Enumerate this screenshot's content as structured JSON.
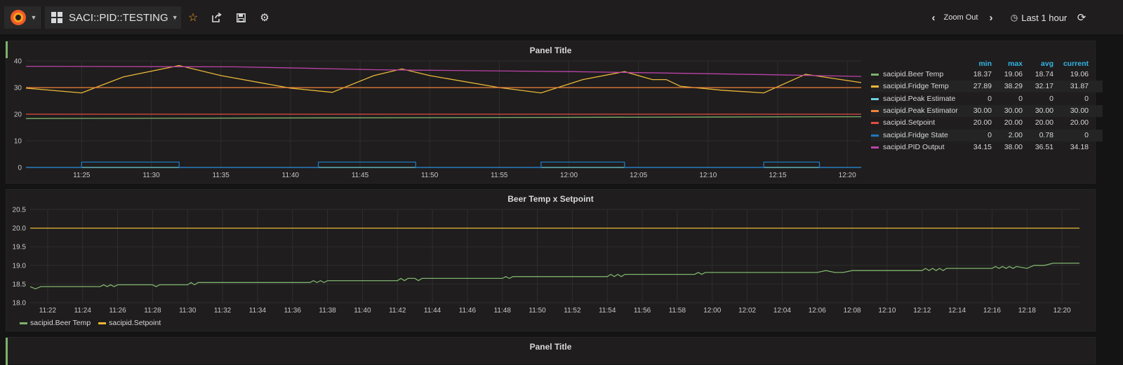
{
  "navbar": {
    "dashboard_title": "SACI::PID::TESTING",
    "zoom_out_label": "Zoom Out",
    "time_range_label": "Last 1 hour",
    "icons": [
      "grafana-logo-icon",
      "grid-icon",
      "star-icon",
      "share-icon",
      "save-icon",
      "gear-icon",
      "chevron-left-icon",
      "chevron-right-icon",
      "clock-icon",
      "refresh-icon"
    ]
  },
  "panels": {
    "top": {
      "title": "Panel Title",
      "legend_headers": {
        "min": "min",
        "max": "max",
        "avg": "avg",
        "current": "current"
      },
      "legend": [
        {
          "name": "sacipid.Beer Temp",
          "color": "#7eb26d",
          "min": "18.37",
          "max": "19.06",
          "avg": "18.74",
          "current": "19.06"
        },
        {
          "name": "sacipid.Fridge Temp",
          "color": "#eab839",
          "min": "27.89",
          "max": "38.29",
          "avg": "32.17",
          "current": "31.87"
        },
        {
          "name": "sacipid.Peak Estimate",
          "color": "#6ed0e0",
          "min": "0",
          "max": "0",
          "avg": "0",
          "current": "0"
        },
        {
          "name": "sacipid.Peak Estimator",
          "color": "#ef843c",
          "min": "30.00",
          "max": "30.00",
          "avg": "30.00",
          "current": "30.00"
        },
        {
          "name": "sacipid.Setpoint",
          "color": "#e24d42",
          "min": "20.00",
          "max": "20.00",
          "avg": "20.00",
          "current": "20.00"
        },
        {
          "name": "sacipid.Fridge State",
          "color": "#1f78c1",
          "min": "0",
          "max": "2.00",
          "avg": "0.78",
          "current": "0"
        },
        {
          "name": "sacipid.PID Output",
          "color": "#ba43a9",
          "min": "34.15",
          "max": "38.00",
          "avg": "36.51",
          "current": "34.18"
        }
      ]
    },
    "middle": {
      "title": "Beer Temp x Setpoint",
      "legend": [
        {
          "name": "sacipid.Beer Temp",
          "color": "#7eb26d"
        },
        {
          "name": "sacipid.Setpoint",
          "color": "#eab839"
        }
      ]
    },
    "bottom": {
      "title": "Panel Title"
    }
  },
  "chart_data": [
    {
      "type": "line",
      "title": "Panel Title",
      "x_ticks": [
        "11:25",
        "11:30",
        "11:35",
        "11:40",
        "11:45",
        "11:50",
        "11:55",
        "12:00",
        "12:05",
        "12:10",
        "12:15",
        "12:20"
      ],
      "x_range": [
        "11:21",
        "12:21"
      ],
      "y_ticks": [
        0,
        10,
        20,
        30,
        40
      ],
      "ylim": [
        0,
        40
      ],
      "grid": true,
      "legend_position": "right",
      "series": [
        {
          "name": "sacipid.Beer Temp",
          "color": "#7eb26d",
          "points": [
            [
              "11:21",
              18.37
            ],
            [
              "12:21",
              19.06
            ]
          ]
        },
        {
          "name": "sacipid.Fridge Temp",
          "color": "#eab839",
          "points": [
            [
              "11:21",
              29.8
            ],
            [
              "11:25",
              28.0
            ],
            [
              "11:28",
              34.0
            ],
            [
              "11:32",
              38.3
            ],
            [
              "11:35",
              34.5
            ],
            [
              "11:40",
              29.8
            ],
            [
              "11:43",
              28.2
            ],
            [
              "11:46",
              34.5
            ],
            [
              "11:48",
              37.0
            ],
            [
              "11:50",
              34.5
            ],
            [
              "11:55",
              30.0
            ],
            [
              "11:58",
              28.0
            ],
            [
              "12:01",
              33.0
            ],
            [
              "12:04",
              36.0
            ],
            [
              "12:06",
              33.0
            ],
            [
              "12:07",
              33.0
            ],
            [
              "12:08",
              30.5
            ],
            [
              "12:11",
              29.0
            ],
            [
              "12:14",
              28.0
            ],
            [
              "12:17",
              35.0
            ],
            [
              "12:21",
              31.87
            ]
          ]
        },
        {
          "name": "sacipid.Peak Estimate",
          "color": "#6ed0e0",
          "points": [
            [
              "11:21",
              0
            ],
            [
              "12:21",
              0
            ]
          ]
        },
        {
          "name": "sacipid.Peak Estimator",
          "color": "#ef843c",
          "points": [
            [
              "11:21",
              30.0
            ],
            [
              "12:21",
              30.0
            ]
          ]
        },
        {
          "name": "sacipid.Setpoint",
          "color": "#e24d42",
          "points": [
            [
              "11:21",
              20.0
            ],
            [
              "12:21",
              20.0
            ]
          ]
        },
        {
          "name": "sacipid.Fridge State",
          "color": "#1f78c1",
          "points": [
            [
              "11:21",
              0
            ],
            [
              "11:25",
              0
            ],
            [
              "11:25",
              2
            ],
            [
              "11:32",
              2
            ],
            [
              "11:32",
              0
            ],
            [
              "11:42",
              0
            ],
            [
              "11:42",
              2
            ],
            [
              "11:49",
              2
            ],
            [
              "11:49",
              0
            ],
            [
              "11:58",
              0
            ],
            [
              "11:58",
              2
            ],
            [
              "12:04",
              2
            ],
            [
              "12:04",
              0
            ],
            [
              "12:14",
              0
            ],
            [
              "12:14",
              2
            ],
            [
              "12:18",
              2
            ],
            [
              "12:18",
              0
            ],
            [
              "12:21",
              0
            ]
          ]
        },
        {
          "name": "sacipid.PID Output",
          "color": "#ba43a9",
          "points": [
            [
              "11:21",
              38.0
            ],
            [
              "11:36",
              37.8
            ],
            [
              "11:41",
              37.3
            ],
            [
              "11:46",
              36.7
            ],
            [
              "11:50",
              36.5
            ],
            [
              "12:00",
              36.0
            ],
            [
              "12:05",
              35.6
            ],
            [
              "12:10",
              35.2
            ],
            [
              "12:15",
              34.8
            ],
            [
              "12:21",
              34.18
            ]
          ]
        }
      ]
    },
    {
      "type": "line",
      "title": "Beer Temp x Setpoint",
      "x_ticks": [
        "11:22",
        "11:24",
        "11:26",
        "11:28",
        "11:30",
        "11:32",
        "11:34",
        "11:36",
        "11:38",
        "11:40",
        "11:42",
        "11:44",
        "11:46",
        "11:48",
        "11:50",
        "11:52",
        "11:54",
        "11:56",
        "11:58",
        "12:00",
        "12:02",
        "12:04",
        "12:06",
        "12:08",
        "12:10",
        "12:12",
        "12:14",
        "12:16",
        "12:18",
        "12:20"
      ],
      "x_range": [
        "11:21",
        "12:21"
      ],
      "y_ticks": [
        "18.0",
        "18.5",
        "19.0",
        "19.5",
        "20.0",
        "20.5"
      ],
      "ylim": [
        18.0,
        20.5
      ],
      "grid": true,
      "legend_position": "bottom",
      "series": [
        {
          "name": "sacipid.Beer Temp",
          "color": "#7eb26d",
          "points": [
            [
              "11:21",
              18.43
            ],
            [
              "11:21.3",
              18.37
            ],
            [
              "11:21.6",
              18.43
            ],
            [
              "11:25",
              18.43
            ],
            [
              "11:25.2",
              18.48
            ],
            [
              "11:25.4",
              18.43
            ],
            [
              "11:25.6",
              18.48
            ],
            [
              "11:25.8",
              18.43
            ],
            [
              "11:26",
              18.48
            ],
            [
              "11:28",
              18.48
            ],
            [
              "11:28.2",
              18.43
            ],
            [
              "11:28.4",
              18.48
            ],
            [
              "11:30",
              18.48
            ],
            [
              "11:30.2",
              18.54
            ],
            [
              "11:30.4",
              18.48
            ],
            [
              "11:30.6",
              18.54
            ],
            [
              "11:37",
              18.54
            ],
            [
              "11:37.2",
              18.59
            ],
            [
              "11:37.4",
              18.54
            ],
            [
              "11:37.6",
              18.59
            ],
            [
              "11:37.8",
              18.54
            ],
            [
              "11:38",
              18.59
            ],
            [
              "11:42",
              18.59
            ],
            [
              "11:42.2",
              18.65
            ],
            [
              "11:42.4",
              18.59
            ],
            [
              "11:42.6",
              18.65
            ],
            [
              "11:43",
              18.65
            ],
            [
              "11:43.2",
              18.59
            ],
            [
              "11:43.4",
              18.65
            ],
            [
              "11:48",
              18.65
            ],
            [
              "11:48.2",
              18.7
            ],
            [
              "11:48.4",
              18.65
            ],
            [
              "11:48.6",
              18.7
            ],
            [
              "11:48.8",
              18.7
            ],
            [
              "11:49",
              18.7
            ],
            [
              "11:54",
              18.7
            ],
            [
              "11:54.2",
              18.76
            ],
            [
              "11:54.4",
              18.7
            ],
            [
              "11:54.6",
              18.76
            ],
            [
              "11:54.8",
              18.7
            ],
            [
              "11:55",
              18.76
            ],
            [
              "11:59",
              18.76
            ],
            [
              "11:59.2",
              18.81
            ],
            [
              "11:59.4",
              18.76
            ],
            [
              "11:59.6",
              18.81
            ],
            [
              "12:00",
              18.81
            ],
            [
              "12:06",
              18.81
            ],
            [
              "12:06.5",
              18.86
            ],
            [
              "12:07",
              18.81
            ],
            [
              "12:07.5",
              18.81
            ],
            [
              "12:08",
              18.86
            ],
            [
              "12:12",
              18.86
            ],
            [
              "12:12.2",
              18.92
            ],
            [
              "12:12.4",
              18.86
            ],
            [
              "12:12.6",
              18.92
            ],
            [
              "12:12.8",
              18.86
            ],
            [
              "12:13",
              18.92
            ],
            [
              "12:13.2",
              18.86
            ],
            [
              "12:13.4",
              18.92
            ],
            [
              "12:16",
              18.92
            ],
            [
              "12:16.2",
              18.97
            ],
            [
              "12:16.4",
              18.92
            ],
            [
              "12:16.6",
              18.97
            ],
            [
              "12:16.8",
              18.92
            ],
            [
              "12:17",
              18.97
            ],
            [
              "12:17.2",
              18.92
            ],
            [
              "12:17.4",
              18.97
            ],
            [
              "12:18",
              18.92
            ],
            [
              "12:18.4",
              19.0
            ],
            [
              "12:19",
              19.0
            ],
            [
              "12:19.5",
              19.06
            ],
            [
              "12:21",
              19.06
            ]
          ]
        },
        {
          "name": "sacipid.Setpoint",
          "color": "#eab839",
          "points": [
            [
              "11:21",
              20.0
            ],
            [
              "12:21",
              20.0
            ]
          ]
        }
      ]
    }
  ]
}
